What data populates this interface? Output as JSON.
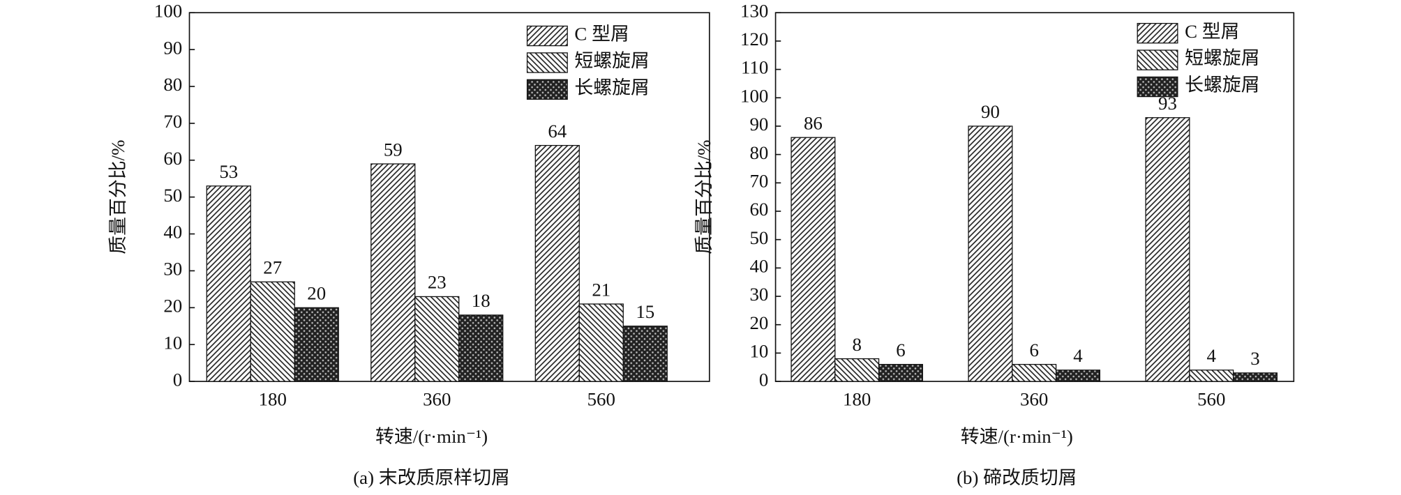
{
  "chart_data": [
    {
      "type": "bar",
      "title": "(a) 末改质原样切屑",
      "xlabel": "转速/(r·min⁻¹)",
      "ylabel": "质量百分比/%",
      "categories": [
        "180",
        "360",
        "560"
      ],
      "series": [
        {
          "name": "C 型屑",
          "color": "#222222",
          "values": [
            53,
            59,
            64
          ]
        },
        {
          "name": "短螺旋屑",
          "color": "#222222",
          "values": [
            27,
            23,
            21
          ]
        },
        {
          "name": "长螺旋屑",
          "color": "#222222",
          "values": [
            20,
            18,
            15
          ]
        }
      ],
      "ylim": [
        0,
        100
      ],
      "yticks": [
        0,
        10,
        20,
        30,
        40,
        50,
        60,
        70,
        80,
        90,
        100
      ],
      "legend": "upper right"
    },
    {
      "type": "bar",
      "title": "(b) 碲改质切屑",
      "xlabel": "转速/(r·min⁻¹)",
      "ylabel": "质量百分比/%",
      "categories": [
        "180",
        "360",
        "560"
      ],
      "series": [
        {
          "name": "C 型屑",
          "color": "#222222",
          "values": [
            86,
            90,
            93
          ]
        },
        {
          "name": "短螺旋屑",
          "color": "#222222",
          "values": [
            8,
            6,
            4
          ]
        },
        {
          "name": "长螺旋屑",
          "color": "#222222",
          "values": [
            6,
            4,
            3
          ]
        }
      ],
      "ylim": [
        0,
        130
      ],
      "yticks": [
        0,
        10,
        20,
        30,
        40,
        50,
        60,
        70,
        80,
        90,
        100,
        110,
        120,
        130
      ],
      "legend": "upper right"
    }
  ]
}
